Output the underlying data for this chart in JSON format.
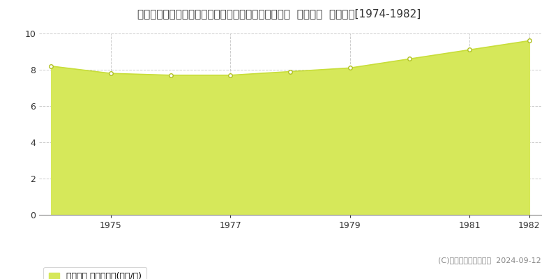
{
  "title": "佐賀県多久市北多久町大字小待字岩の下５９９番２０  地価公示  地価推移[1974-1982]",
  "years": [
    1974,
    1975,
    1976,
    1977,
    1978,
    1979,
    1980,
    1981,
    1982
  ],
  "values": [
    8.2,
    7.8,
    7.7,
    7.7,
    7.9,
    8.1,
    8.6,
    9.1,
    9.6
  ],
  "line_color": "#c8de3a",
  "fill_color": "#d6e85a",
  "marker_facecolor": "#ffffff",
  "marker_edgecolor": "#b0c020",
  "bg_color": "#ffffff",
  "plot_bg_color": "#ffffff",
  "grid_color": "#cccccc",
  "ylim": [
    0,
    10
  ],
  "yticks": [
    0,
    2,
    4,
    6,
    8,
    10
  ],
  "xticks": [
    1975,
    1977,
    1979,
    1981,
    1982
  ],
  "legend_label": "地価公示 平均坪単価(万円/坪)",
  "copyright_text": "(C)土地価格ドットコム  2024-09-12",
  "title_fontsize": 11,
  "axis_fontsize": 9,
  "legend_fontsize": 9,
  "copyright_fontsize": 8
}
